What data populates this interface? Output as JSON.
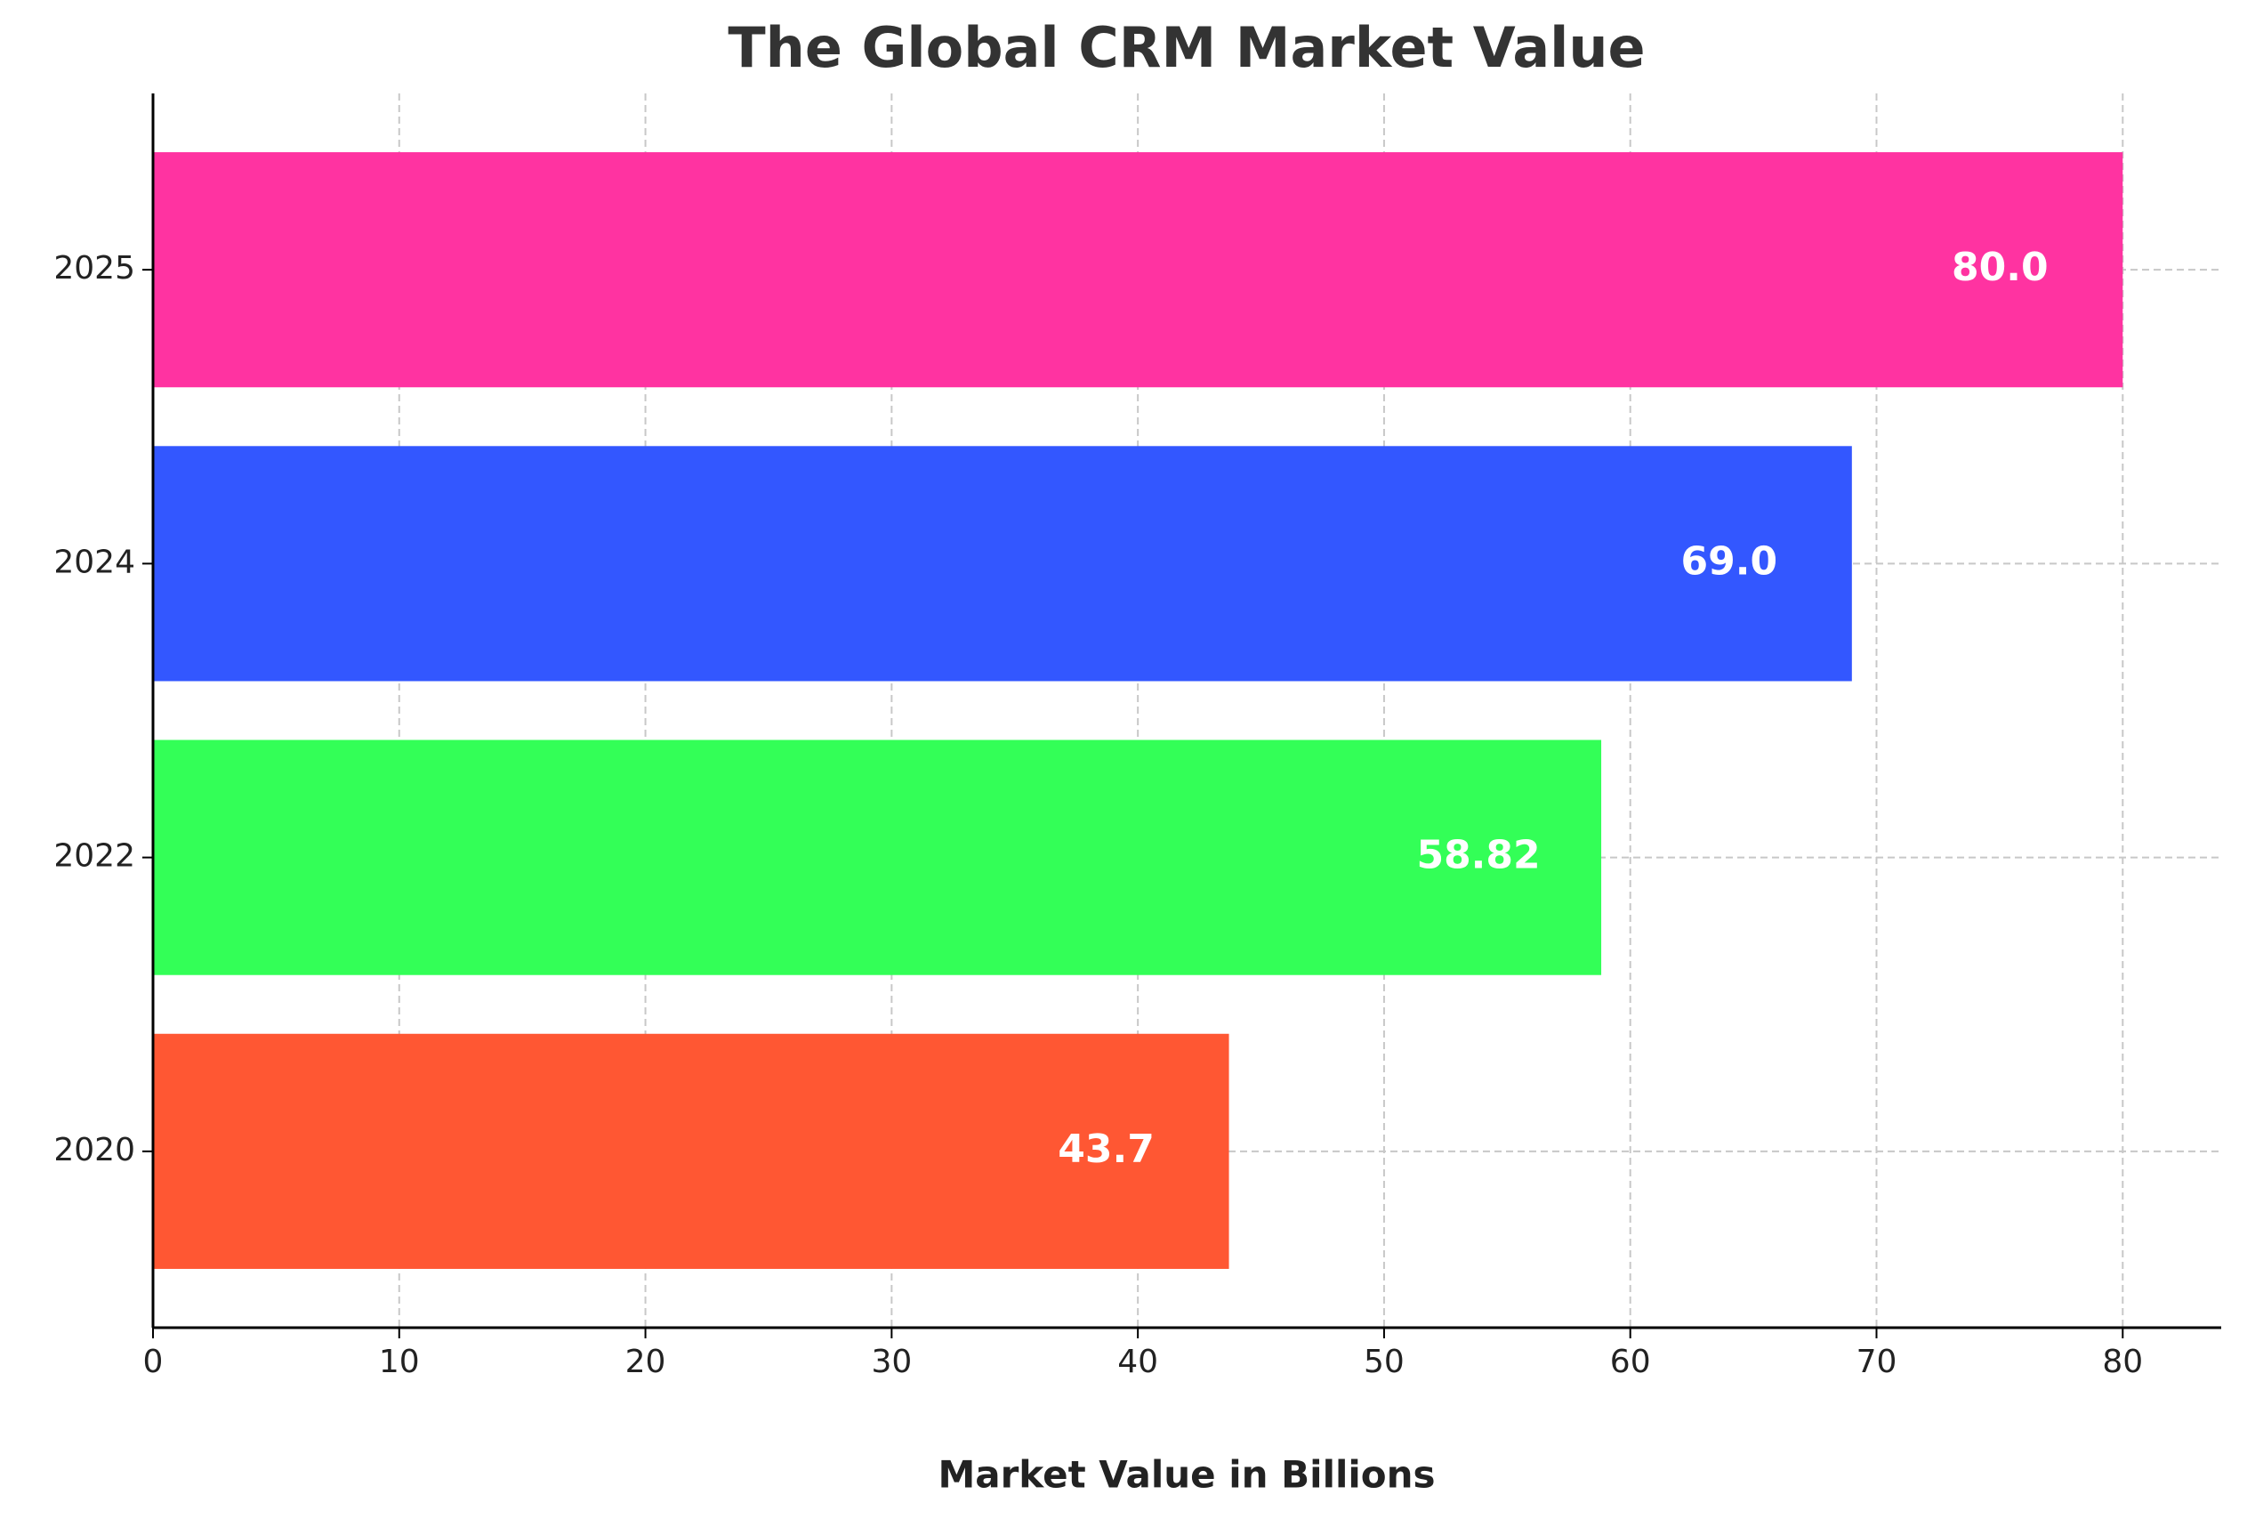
{
  "chart_data": {
    "type": "barh",
    "title": "The Global CRM Market Value",
    "x_label": "Market Value in Billions",
    "categories": [
      "2020",
      "2022",
      "2024",
      "2025"
    ],
    "values": [
      43.7,
      58.82,
      69,
      80
    ],
    "value_labels": [
      "43.7",
      "58.82",
      "69.0",
      "80.0"
    ],
    "colors": [
      "#FF5733",
      "#33FF57",
      "#3357FF",
      "#FF33A1"
    ],
    "xlim": [
      0,
      84
    ],
    "xticks": [
      0,
      10,
      20,
      30,
      40,
      50,
      60,
      70,
      80
    ],
    "grid": true
  }
}
